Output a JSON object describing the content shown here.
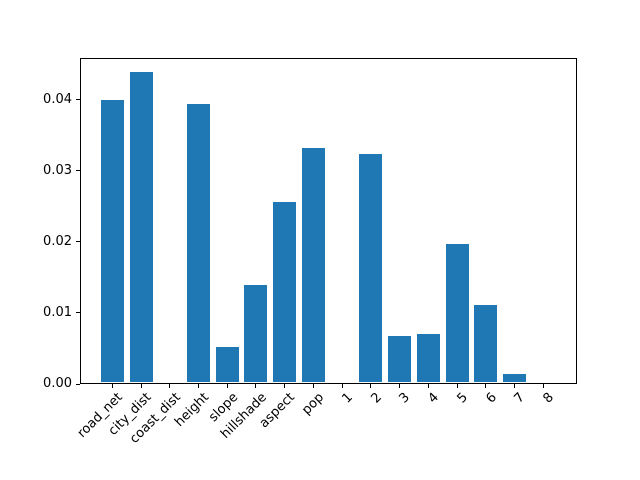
{
  "chart_data": {
    "type": "bar",
    "title": "",
    "xlabel": "",
    "ylabel": "",
    "categories": [
      "road_net",
      "city_dist",
      "coast_dist",
      "height",
      "slope",
      "hillshade",
      "aspect",
      "pop",
      "1",
      "2",
      "3",
      "4",
      "5",
      "6",
      "7",
      "8"
    ],
    "values": [
      0.0397,
      0.0437,
      0.0,
      0.0391,
      0.005,
      0.0137,
      0.0254,
      0.033,
      0.0,
      0.0321,
      0.0065,
      0.0068,
      0.0195,
      0.0108,
      0.0011,
      0.0
    ],
    "ylim": [
      0,
      0.0459
    ],
    "ytick_labels": [
      "0.00",
      "0.01",
      "0.02",
      "0.03",
      "0.04"
    ],
    "ytick_values": [
      0.0,
      0.01,
      0.02,
      0.03,
      0.04
    ],
    "xtick_rotation_deg": 45,
    "bar_color": "#1f77b4",
    "spine_color": "#000000",
    "background_color": "#ffffff",
    "grid": false,
    "legend": null
  }
}
